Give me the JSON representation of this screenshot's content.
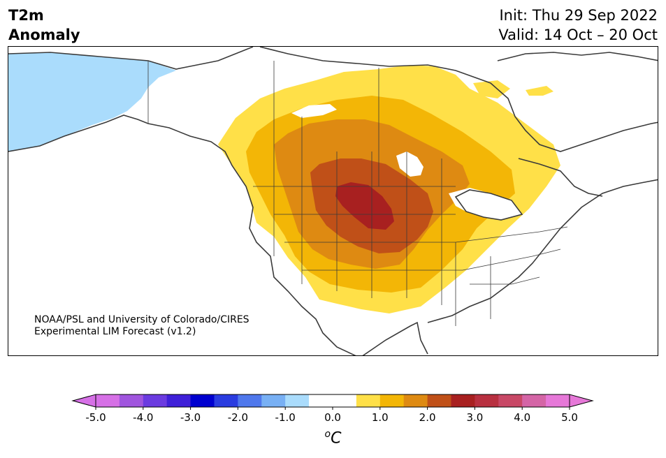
{
  "title": {
    "line1": "T2m",
    "line2": "Anomaly"
  },
  "dates": {
    "init": "Init: Thu 29 Sep 2022",
    "valid": "Valid: 14 Oct – 20 Oct"
  },
  "credit": {
    "line1": "NOAA/PSL and University of Colorado/CIRES",
    "line2": "Experimental LIM Forecast (v1.2)"
  },
  "colorbar": {
    "tick_labels": [
      "-5.0",
      "-4.0",
      "-3.0",
      "-2.0",
      "-1.0",
      "0.0",
      "1.0",
      "2.0",
      "3.0",
      "4.0",
      "5.0"
    ],
    "unit_sup": "o",
    "unit_base": "C",
    "colors": [
      "#d670e6",
      "#a055de",
      "#6b3be0",
      "#3f20d8",
      "#0000cf",
      "#2a3ce0",
      "#4f78ec",
      "#78b0f4",
      "#aadcfc",
      "#ffffff",
      "#ffffff",
      "#ffe048",
      "#f3b606",
      "#de8a12",
      "#c05018",
      "#a82020",
      "#b83040",
      "#c84866",
      "#d465a6",
      "#e678d8"
    ],
    "extend_low_color": "#d670e6",
    "extend_high_color": "#e678d8"
  },
  "map": {
    "ocean_color": "#ffffff",
    "cold_anomaly_color": "#aadcfc",
    "warm_colors": [
      "#ffe048",
      "#f3b606",
      "#de8a12",
      "#c05018",
      "#a82020"
    ]
  }
}
